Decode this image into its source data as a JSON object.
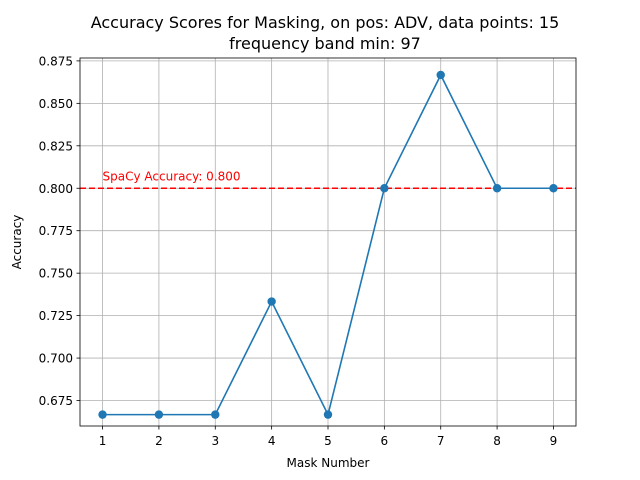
{
  "chart_data": {
    "type": "line",
    "title_line1": "Accuracy Scores for Masking, on pos: ADV, data points: 15",
    "title_line2": "frequency band min: 97",
    "xlabel": "Mask Number",
    "ylabel": "Accuracy",
    "x": [
      1,
      2,
      3,
      4,
      5,
      6,
      7,
      8,
      9
    ],
    "series": [
      {
        "values": [
          0.6667,
          0.6667,
          0.6667,
          0.7333,
          0.6667,
          0.8,
          0.8667,
          0.8,
          0.8
        ],
        "color": "#1f77b4",
        "marker": "circle"
      }
    ],
    "reference_line": {
      "value": 0.8,
      "color": "#ff0000",
      "style": "dashed",
      "label": "SpaCy Accuracy: 0.800"
    },
    "xticks": [
      1,
      2,
      3,
      4,
      5,
      6,
      7,
      8,
      9
    ],
    "xtick_labels": [
      "1",
      "2",
      "3",
      "4",
      "5",
      "6",
      "7",
      "8",
      "9"
    ],
    "yticks": [
      0.675,
      0.7,
      0.725,
      0.75,
      0.775,
      0.8,
      0.825,
      0.85,
      0.875
    ],
    "ytick_labels": [
      "0.675",
      "0.700",
      "0.725",
      "0.750",
      "0.775",
      "0.800",
      "0.825",
      "0.850",
      "0.875"
    ],
    "xlim": [
      0.6,
      9.4
    ],
    "ylim": [
      0.66,
      0.8767
    ],
    "grid": true
  }
}
